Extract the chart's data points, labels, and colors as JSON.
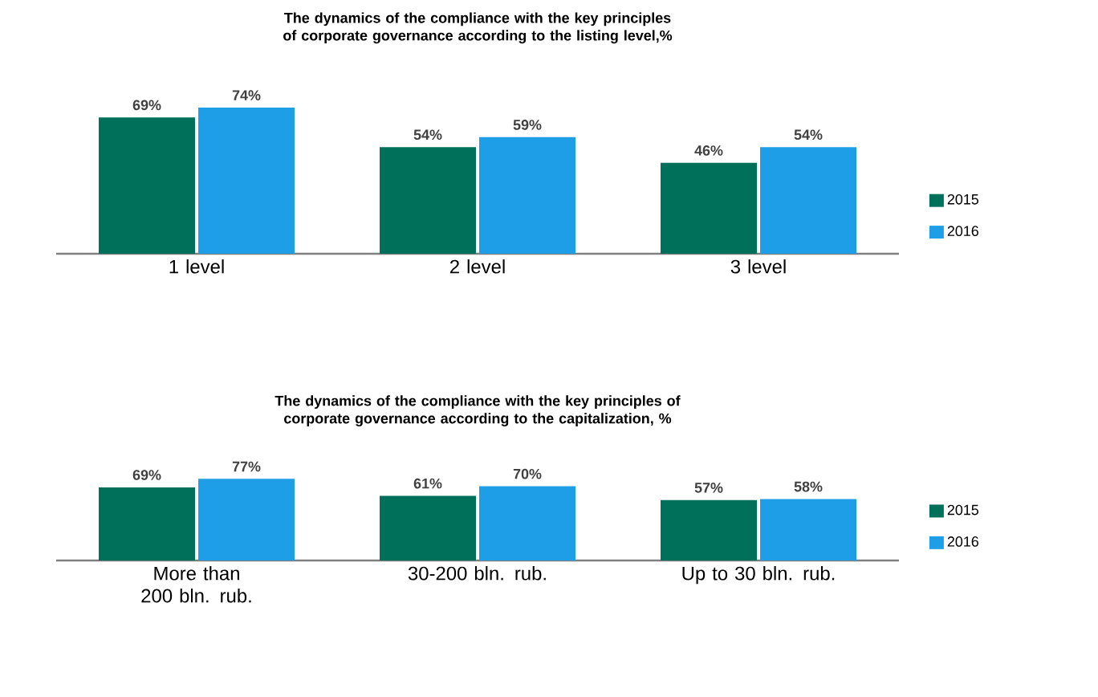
{
  "chart_data": [
    {
      "type": "bar",
      "title": "The dynamics of the compliance with the key principles of corporate governance according to the listing level,%",
      "categories": [
        "1 level",
        "2 level",
        "3 level"
      ],
      "series": [
        {
          "name": "2015",
          "color": "#00705a",
          "values": [
            69,
            54,
            46
          ],
          "value_labels": [
            "69%",
            "54%",
            "46%"
          ]
        },
        {
          "name": "2016",
          "color": "#1e9ee6",
          "values": [
            74,
            59,
            54
          ],
          "value_labels": [
            "74%",
            "59%",
            "54%"
          ]
        }
      ],
      "legend": "right",
      "tick_labels": "x"
    },
    {
      "type": "bar",
      "title": "The dynamics of the compliance with the key principles of corporate governance according to the capitalization, %",
      "categories": [
        "More than 200 bln. rub.",
        "30-200 bln. rub.",
        "Up to 30 bln. rub."
      ],
      "series": [
        {
          "name": "2015",
          "color": "#00705a",
          "values": [
            69,
            61,
            57
          ],
          "value_labels": [
            "69%",
            "61%",
            "57%"
          ]
        },
        {
          "name": "2016",
          "color": "#1e9ee6",
          "values": [
            77,
            70,
            58
          ],
          "value_labels": [
            "77%",
            "70%",
            "58%"
          ]
        }
      ],
      "legend": "right",
      "tick_labels": "x"
    }
  ]
}
